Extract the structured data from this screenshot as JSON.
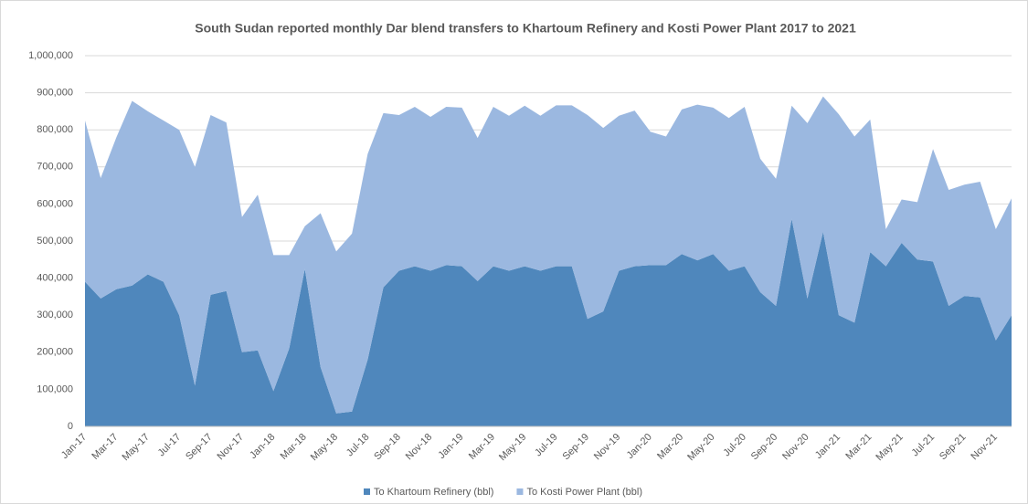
{
  "chart_data": {
    "type": "stacked_area",
    "title": "South Sudan reported monthly Dar blend transfers to Khartoum Refinery and Kosti Power Plant 2017 to 2021",
    "categories": [
      "Jan-17",
      null,
      "Mar-17",
      null,
      "May-17",
      null,
      "Jul-17",
      null,
      "Sep-17",
      null,
      "Nov-17",
      null,
      "Jan-18",
      null,
      "Mar-18",
      null,
      "May-18",
      null,
      "Jul-18",
      null,
      "Sep-18",
      null,
      "Nov-18",
      null,
      "Jan-19",
      null,
      "Mar-19",
      null,
      "May-19",
      null,
      "Jul-19",
      null,
      "Sep-19",
      null,
      "Nov-19",
      null,
      "Jan-20",
      null,
      "Mar-20",
      null,
      "May-20",
      null,
      "Jul-20",
      null,
      "Sep-20",
      null,
      "Nov-20",
      null,
      "Jan-21",
      null,
      "Mar-21",
      null,
      "May-21",
      null,
      "Jul-21",
      null,
      "Sep-21",
      null,
      "Nov-21",
      null
    ],
    "series": [
      {
        "name": "To Khartoum Refinery (bbl)",
        "color": "#4f87bc",
        "values": [
          390000,
          345000,
          370000,
          380000,
          410000,
          390000,
          300000,
          110000,
          355000,
          365000,
          200000,
          205000,
          95000,
          210000,
          425000,
          160000,
          35000,
          40000,
          180000,
          375000,
          420000,
          432000,
          420000,
          435000,
          432000,
          392000,
          432000,
          420000,
          432000,
          420000,
          432000,
          432000,
          290000,
          310000,
          420000,
          432000,
          435000,
          435000,
          465000,
          448000,
          465000,
          420000,
          432000,
          362000,
          325000,
          560000,
          345000,
          525000,
          300000,
          280000,
          470000,
          432000,
          495000,
          450000,
          445000,
          325000,
          352000,
          348000,
          232000,
          300000
        ]
      },
      {
        "name": "To Kosti Power Plant (bbl)",
        "color": "#9bb8e0",
        "values": [
          435000,
          325000,
          410000,
          498000,
          440000,
          435000,
          500000,
          590000,
          485000,
          455000,
          365000,
          420000,
          367000,
          252000,
          115000,
          415000,
          437000,
          480000,
          555000,
          470000,
          420000,
          430000,
          415000,
          427000,
          428000,
          386000,
          430000,
          418000,
          433000,
          418000,
          434000,
          434000,
          550000,
          495000,
          418000,
          420000,
          360000,
          347000,
          390000,
          420000,
          395000,
          412000,
          430000,
          360000,
          343000,
          305000,
          473000,
          365000,
          542000,
          502000,
          358000,
          100000,
          117000,
          155000,
          303000,
          313000,
          300000,
          312000,
          300000,
          315000
        ]
      }
    ],
    "ylim": [
      0,
      1000000
    ],
    "yticks": [
      0,
      {
        "value": 100000,
        "label": "100,000"
      },
      {
        "value": 200000,
        "label": "200,000"
      },
      {
        "value": 300000,
        "label": "300,000"
      },
      {
        "value": 400000,
        "label": "400,000"
      },
      {
        "value": 500000,
        "label": "500,000"
      },
      {
        "value": 600000,
        "label": "600,000"
      },
      {
        "value": 700000,
        "label": "700,000"
      },
      {
        "value": 800000,
        "label": "800,000"
      },
      {
        "value": 900000,
        "label": "900,000"
      },
      {
        "value": 1000000,
        "label": "1,000,000"
      }
    ],
    "grid": true,
    "legend": "bottom"
  }
}
